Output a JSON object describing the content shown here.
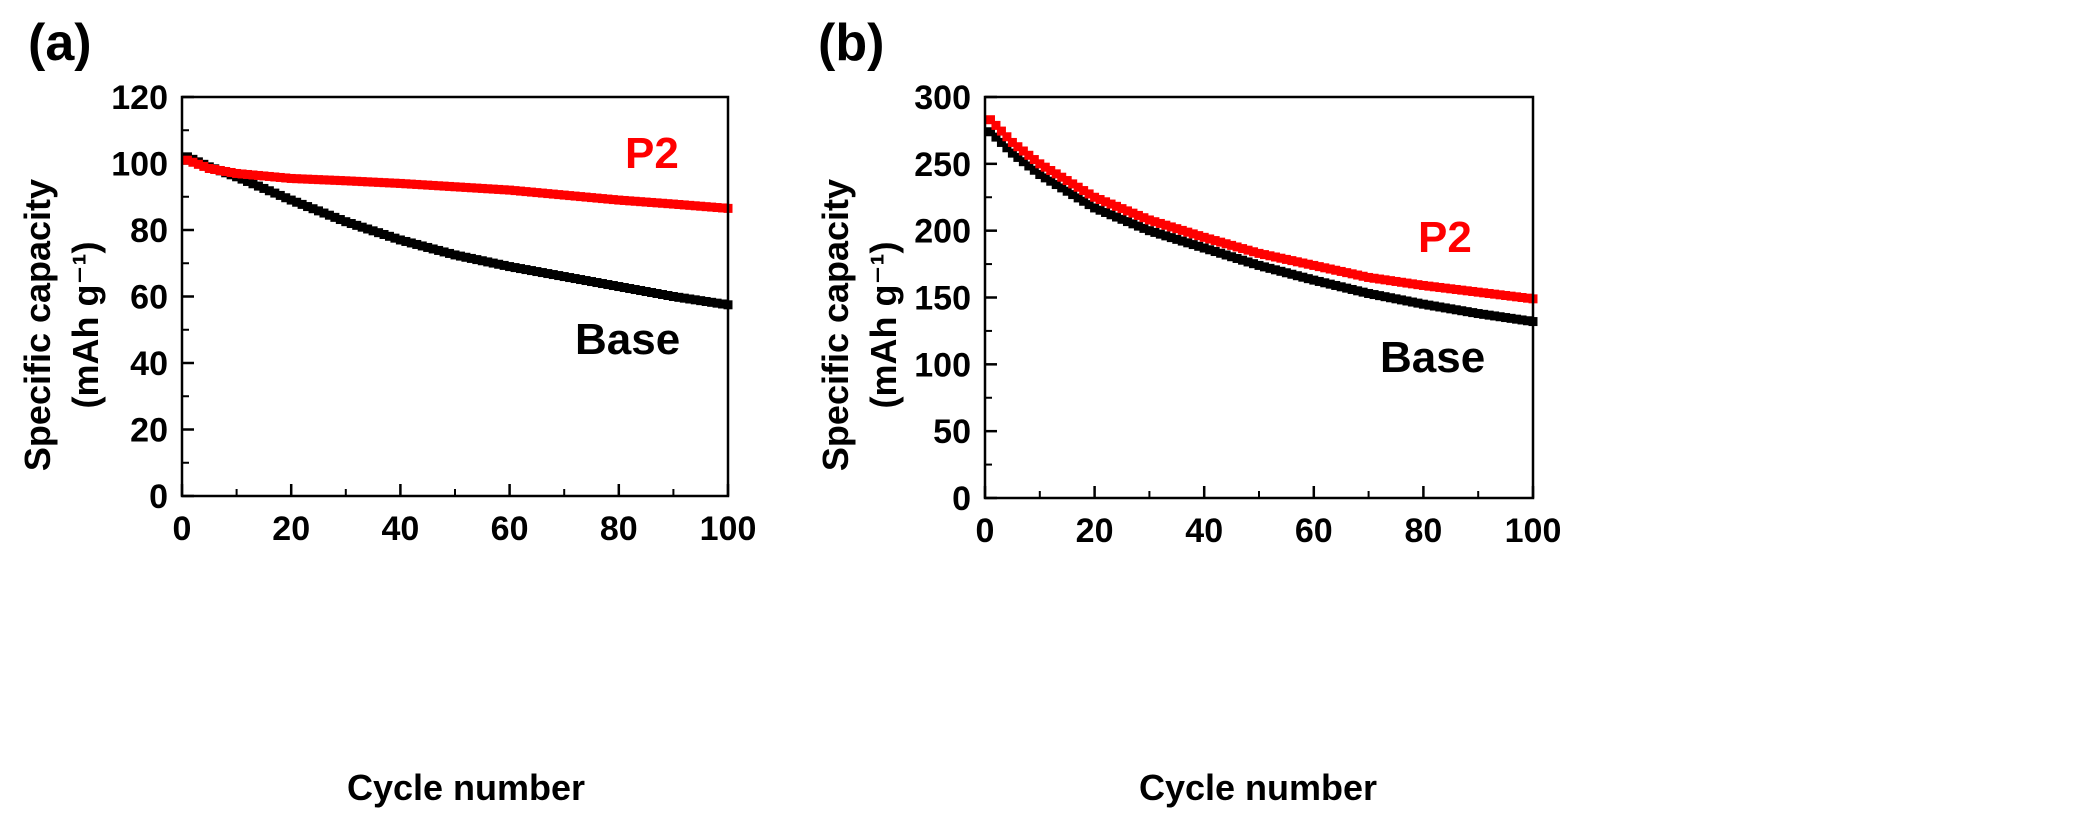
{
  "chart_data": [
    {
      "panel": "(a)",
      "type": "scatter",
      "title": "",
      "xlabel": "Cycle number",
      "ylabel_line1": "Specific capacity",
      "ylabel_line2": "(mAh g⁻¹)",
      "xlim": [
        0,
        100
      ],
      "ylim": [
        0,
        120
      ],
      "xticks": [
        0,
        20,
        40,
        60,
        80,
        100
      ],
      "yticks": [
        0,
        20,
        40,
        60,
        80,
        100,
        120
      ],
      "grid": false,
      "series": [
        {
          "name": "Base",
          "color": "#000000",
          "anchors": [
            [
              1,
              102
            ],
            [
              5,
              99
            ],
            [
              10,
              96
            ],
            [
              20,
              89
            ],
            [
              30,
              82.5
            ],
            [
              40,
              77
            ],
            [
              50,
              72.5
            ],
            [
              60,
              69
            ],
            [
              70,
              66
            ],
            [
              80,
              63
            ],
            [
              90,
              60
            ],
            [
              100,
              57.5
            ]
          ]
        },
        {
          "name": "P2",
          "color": "#ff0000",
          "anchors": [
            [
              1,
              101
            ],
            [
              5,
              98.5
            ],
            [
              10,
              97
            ],
            [
              20,
              95.5
            ],
            [
              30,
              94.8
            ],
            [
              40,
              94
            ],
            [
              50,
              93
            ],
            [
              60,
              92
            ],
            [
              70,
              90.5
            ],
            [
              80,
              89
            ],
            [
              90,
              87.8
            ],
            [
              100,
              86.5
            ]
          ]
        }
      ],
      "annotations": [
        {
          "text": "P2",
          "color": "#ff0000"
        },
        {
          "text": "Base",
          "color": "#000000"
        }
      ]
    },
    {
      "panel": "(b)",
      "type": "scatter",
      "title": "",
      "xlabel": "Cycle number",
      "ylabel_line1": "Specific capacity",
      "ylabel_line2": "(mAh g⁻¹)",
      "xlim": [
        0,
        100
      ],
      "ylim": [
        0,
        300
      ],
      "xticks": [
        0,
        20,
        40,
        60,
        80,
        100
      ],
      "yticks": [
        0,
        50,
        100,
        150,
        200,
        250,
        300
      ],
      "grid": false,
      "series": [
        {
          "name": "Base",
          "color": "#000000",
          "anchors": [
            [
              1,
              274
            ],
            [
              5,
              258
            ],
            [
              10,
              242
            ],
            [
              20,
              217
            ],
            [
              30,
              200
            ],
            [
              40,
              187
            ],
            [
              50,
              174
            ],
            [
              60,
              163
            ],
            [
              70,
              153
            ],
            [
              80,
              145
            ],
            [
              90,
              138
            ],
            [
              100,
              132
            ]
          ]
        },
        {
          "name": "P2",
          "color": "#ff0000",
          "anchors": [
            [
              1,
              283
            ],
            [
              5,
              266
            ],
            [
              10,
              250
            ],
            [
              20,
              225
            ],
            [
              30,
              208
            ],
            [
              40,
              195
            ],
            [
              50,
              183
            ],
            [
              60,
              174
            ],
            [
              70,
              165
            ],
            [
              80,
              159
            ],
            [
              90,
              154
            ],
            [
              100,
              149
            ]
          ]
        }
      ],
      "annotations": [
        {
          "text": "P2",
          "color": "#ff0000"
        },
        {
          "text": "Base",
          "color": "#000000"
        }
      ]
    }
  ]
}
